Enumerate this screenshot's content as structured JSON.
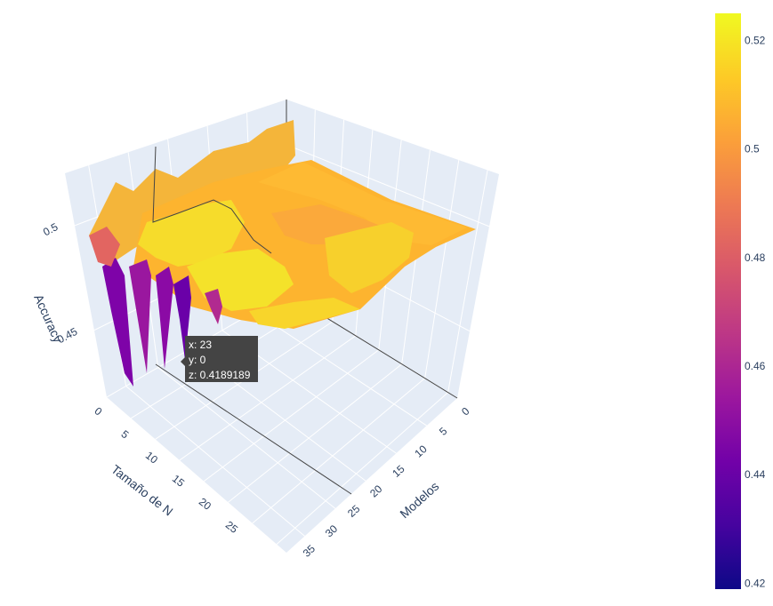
{
  "chart_data": {
    "type": "surface",
    "title": "",
    "xlabel": "Modelos",
    "ylabel": "Tamaño de N",
    "zlabel": "Accuracy",
    "x_ticks": [
      "0",
      "5",
      "10",
      "15",
      "20",
      "25",
      "30",
      "35"
    ],
    "y_ticks": [
      "0",
      "5",
      "10",
      "15",
      "20",
      "25"
    ],
    "z_ticks": [
      "0.45",
      "0.5"
    ],
    "xlim": [
      0,
      37
    ],
    "ylim": [
      0,
      28
    ],
    "zlim": [
      0.418,
      0.525
    ],
    "colorscale": "plasma",
    "colorbar": {
      "range": [
        0.4189,
        0.525
      ],
      "ticks": [
        "0.42",
        "0.44",
        "0.46",
        "0.48",
        "0.5",
        "0.52"
      ],
      "tick_values": [
        0.42,
        0.44,
        0.46,
        0.48,
        0.5,
        0.52
      ]
    },
    "hover": {
      "x_label": "x: 23",
      "y_label": "y: 0",
      "z_label": "z: 0.4189189"
    },
    "colors": {
      "scene_bg": "#e5ecf6",
      "grid": "#ffffff",
      "hover_bg": "#444444"
    }
  }
}
